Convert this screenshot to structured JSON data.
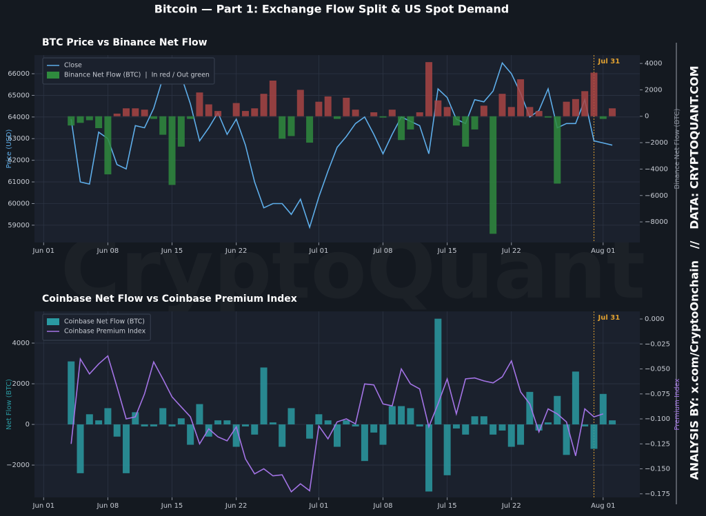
{
  "title": "Bitcoin — Part 1: Exchange Flow Split & US Spot Demand",
  "side_note": "ANALYSIS BY: x.com/CryptoOnchain   //   DATA: CRYPTOQUANT.COM",
  "watermark": "CryptoQuant",
  "chart_data": [
    {
      "type": "combo",
      "title": "BTC Price vs Binance Net Flow",
      "ylabel": "Price (USD)",
      "y2label": "Binance Net Flow (BTC)",
      "grid": true,
      "legend": "upper left",
      "x": [
        "Jun 04",
        "Jun 05",
        "Jun 06",
        "Jun 07",
        "Jun 08",
        "Jun 09",
        "Jun 10",
        "Jun 11",
        "Jun 12",
        "Jun 13",
        "Jun 14",
        "Jun 15",
        "Jun 16",
        "Jun 17",
        "Jun 18",
        "Jun 19",
        "Jun 20",
        "Jun 21",
        "Jun 22",
        "Jun 23",
        "Jun 24",
        "Jun 25",
        "Jun 26",
        "Jun 27",
        "Jun 28",
        "Jun 29",
        "Jun 30",
        "Jul 01",
        "Jul 02",
        "Jul 03",
        "Jul 04",
        "Jul 05",
        "Jul 06",
        "Jul 07",
        "Jul 08",
        "Jul 09",
        "Jul 10",
        "Jul 11",
        "Jul 12",
        "Jul 13",
        "Jul 14",
        "Jul 15",
        "Jul 16",
        "Jul 17",
        "Jul 18",
        "Jul 19",
        "Jul 20",
        "Jul 21",
        "Jul 22",
        "Jul 23",
        "Jul 24",
        "Jul 25",
        "Jul 26",
        "Jul 27",
        "Jul 28",
        "Jul 29",
        "Jul 30",
        "Jul 31",
        "Aug 01",
        "Aug 02"
      ],
      "xlim": [
        "May 31",
        "Aug 05"
      ],
      "xticks": [
        "Jun 01",
        "Jun 08",
        "Jun 15",
        "Jun 22",
        "Jul 01",
        "Jul 08",
        "Jul 15",
        "Jul 22",
        "Aug 01"
      ],
      "ylim": [
        58200,
        66860
      ],
      "yticks": [
        59000,
        60000,
        61000,
        62000,
        63000,
        64000,
        65000,
        66000
      ],
      "y2lim": [
        -9560,
        4630
      ],
      "y2ticks": [
        {
          "value": -8000,
          "label": "−8000"
        },
        {
          "value": -6000,
          "label": "−6000"
        },
        {
          "value": -4000,
          "label": "−4000"
        },
        {
          "value": -2000,
          "label": "−2000"
        },
        0,
        2000,
        4000
      ],
      "annotation": {
        "text": "Jul 31",
        "x": "Jul 31",
        "color": "#e0a030"
      },
      "series": [
        {
          "name": "Close",
          "type": "line",
          "color": "#5eaeea",
          "values": [
            63900,
            61000,
            60900,
            63300,
            63000,
            61800,
            61600,
            63600,
            63500,
            64400,
            65800,
            66200,
            65900,
            64600,
            62900,
            63500,
            64200,
            63200,
            63900,
            62700,
            61000,
            59800,
            60000,
            60000,
            59500,
            60200,
            58900,
            60300,
            61500,
            62600,
            63100,
            63700,
            64000,
            63200,
            62300,
            63200,
            64000,
            63800,
            63600,
            62300,
            65300,
            64900,
            63900,
            63700,
            64800,
            64700,
            65200,
            66500,
            66000,
            65100,
            64000,
            64300,
            65300,
            63500,
            63700,
            63700,
            64800,
            62900,
            62800,
            62700
          ]
        },
        {
          "name": "Binance Net Flow (BTC)  |  In red / Out green",
          "type": "bar",
          "axis": "y2",
          "color": "#a84444",
          "negative_color": "#2f8a3e",
          "values": [
            -700,
            -500,
            -300,
            -900,
            -4400,
            200,
            600,
            600,
            500,
            -200,
            -1400,
            -5200,
            -2300,
            -200,
            1800,
            900,
            400,
            0,
            1000,
            400,
            600,
            1700,
            2700,
            -1700,
            -1500,
            2000,
            -2000,
            1100,
            1500,
            -200,
            1400,
            500,
            0,
            300,
            -100,
            500,
            -1800,
            -1000,
            300,
            4100,
            1200,
            700,
            -700,
            -2300,
            -1000,
            800,
            -8900,
            1700,
            700,
            2800,
            700,
            400,
            -100,
            -5100,
            1100,
            1300,
            1900,
            3300,
            -200,
            600
          ]
        }
      ]
    },
    {
      "type": "combo",
      "title": "Coinbase Net Flow vs Coinbase Premium Index",
      "ylabel": "Net Flow (BTC)",
      "y2label": "Premium Index",
      "grid": true,
      "legend": "upper left",
      "x": [
        "Jun 04",
        "Jun 05",
        "Jun 06",
        "Jun 07",
        "Jun 08",
        "Jun 09",
        "Jun 10",
        "Jun 11",
        "Jun 12",
        "Jun 13",
        "Jun 14",
        "Jun 15",
        "Jun 16",
        "Jun 17",
        "Jun 18",
        "Jun 19",
        "Jun 20",
        "Jun 21",
        "Jun 22",
        "Jun 23",
        "Jun 24",
        "Jun 25",
        "Jun 26",
        "Jun 27",
        "Jun 28",
        "Jun 29",
        "Jun 30",
        "Jul 01",
        "Jul 02",
        "Jul 03",
        "Jul 04",
        "Jul 05",
        "Jul 06",
        "Jul 07",
        "Jul 08",
        "Jul 09",
        "Jul 10",
        "Jul 11",
        "Jul 12",
        "Jul 13",
        "Jul 14",
        "Jul 15",
        "Jul 16",
        "Jul 17",
        "Jul 18",
        "Jul 19",
        "Jul 20",
        "Jul 21",
        "Jul 22",
        "Jul 23",
        "Jul 24",
        "Jul 25",
        "Jul 26",
        "Jul 27",
        "Jul 28",
        "Jul 29",
        "Jul 30",
        "Jul 31",
        "Aug 01",
        "Aug 02"
      ],
      "xlim": [
        "May 31",
        "Aug 05"
      ],
      "xticks": [
        "Jun 01",
        "Jun 08",
        "Jun 15",
        "Jun 22",
        "Jul 01",
        "Jul 08",
        "Jul 15",
        "Jul 22",
        "Aug 01"
      ],
      "ylim": [
        -3590,
        5560
      ],
      "yticks": [
        {
          "value": -2000,
          "label": "−2000"
        },
        0,
        2000,
        4000
      ],
      "y2lim": [
        -0.1786,
        0.0076
      ],
      "y2ticks": [
        {
          "value": -0.175,
          "label": "−0.175"
        },
        {
          "value": -0.15,
          "label": "−0.150"
        },
        {
          "value": -0.125,
          "label": "−0.125"
        },
        {
          "value": -0.1,
          "label": "−0.100"
        },
        {
          "value": -0.075,
          "label": "−0.075"
        },
        {
          "value": -0.05,
          "label": "−0.050"
        },
        {
          "value": -0.025,
          "label": "−0.025"
        },
        {
          "value": 0,
          "label": "0.000"
        }
      ],
      "annotation": {
        "text": "Jul 31",
        "x": "Jul 31",
        "color": "#e0a030"
      },
      "series": [
        {
          "name": "Coinbase Net Flow (BTC)",
          "type": "bar",
          "color": "#2a9aa2",
          "values": [
            3100,
            -2400,
            500,
            200,
            800,
            -600,
            -2400,
            600,
            -100,
            -100,
            800,
            -100,
            300,
            -1000,
            1000,
            -600,
            200,
            200,
            -1100,
            -100,
            -500,
            2800,
            100,
            -1100,
            800,
            0,
            -700,
            500,
            200,
            -1100,
            200,
            -100,
            -1800,
            -400,
            -1000,
            900,
            900,
            800,
            -100,
            -3300,
            5200,
            -2500,
            -200,
            -500,
            400,
            400,
            -500,
            -300,
            -1100,
            -1000,
            1600,
            -300,
            100,
            1400,
            -1500,
            2600,
            -100,
            -1200,
            1500,
            200
          ]
        },
        {
          "name": "Coinbase Premium Index",
          "type": "line",
          "axis": "y2",
          "color": "#a474e6",
          "values": [
            -0.125,
            -0.04,
            -0.055,
            -0.045,
            -0.037,
            -0.068,
            -0.1,
            -0.098,
            -0.075,
            -0.043,
            -0.06,
            -0.078,
            -0.088,
            -0.098,
            -0.125,
            -0.11,
            -0.118,
            -0.122,
            -0.108,
            -0.14,
            -0.155,
            -0.15,
            -0.157,
            -0.156,
            -0.173,
            -0.165,
            -0.172,
            -0.107,
            -0.12,
            -0.103,
            -0.1,
            -0.105,
            -0.065,
            -0.066,
            -0.085,
            -0.087,
            -0.05,
            -0.065,
            -0.07,
            -0.108,
            -0.085,
            -0.06,
            -0.095,
            -0.06,
            -0.059,
            -0.062,
            -0.064,
            -0.058,
            -0.042,
            -0.073,
            -0.085,
            -0.113,
            -0.09,
            -0.095,
            -0.103,
            -0.137,
            -0.09,
            -0.098,
            -0.095,
            null
          ]
        }
      ]
    }
  ]
}
